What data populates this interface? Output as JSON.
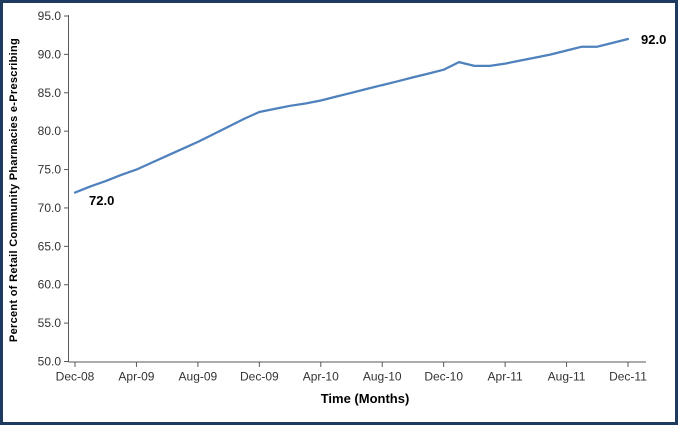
{
  "frame": {
    "border_color": "#1E3A5F",
    "background": "#FFFFFF"
  },
  "chart_data": {
    "type": "line",
    "title": "",
    "xlabel": "Time (Months)",
    "ylabel": "Percent of Retail Community Pharmacies e-Prescribing",
    "ylim": [
      50.0,
      95.0
    ],
    "ytick_step": 5.0,
    "grid": false,
    "legend_position": "none",
    "line_color": "#4F81BD",
    "axis_color": "#595959",
    "y_tick_labels": [
      "95.0",
      "90.0",
      "85.0",
      "80.0",
      "75.0",
      "70.0",
      "65.0",
      "60.0",
      "55.0",
      "50.0"
    ],
    "x_tick_labels": [
      "Dec-08",
      "Apr-09",
      "Aug-09",
      "Dec-09",
      "Apr-10",
      "Aug-10",
      "Dec-10",
      "Apr-11",
      "Aug-11",
      "Dec-11"
    ],
    "x": [
      "Dec-08",
      "Jan-09",
      "Feb-09",
      "Mar-09",
      "Apr-09",
      "May-09",
      "Jun-09",
      "Jul-09",
      "Aug-09",
      "Sep-09",
      "Oct-09",
      "Nov-09",
      "Dec-09",
      "Jan-10",
      "Feb-10",
      "Mar-10",
      "Apr-10",
      "May-10",
      "Jun-10",
      "Jul-10",
      "Aug-10",
      "Sep-10",
      "Oct-10",
      "Nov-10",
      "Dec-10",
      "Jan-11",
      "Feb-11",
      "Mar-11",
      "Apr-11",
      "May-11",
      "Jun-11",
      "Jul-11",
      "Aug-11",
      "Sep-11",
      "Oct-11",
      "Nov-11",
      "Dec-11"
    ],
    "series": [
      {
        "name": "Percent of Retail Community Pharmacies e-Prescribing",
        "values": [
          72.0,
          72.8,
          73.5,
          74.3,
          75.0,
          75.9,
          76.8,
          77.7,
          78.6,
          79.6,
          80.6,
          81.6,
          82.5,
          82.9,
          83.3,
          83.6,
          84.0,
          84.5,
          85.0,
          85.5,
          86.0,
          86.5,
          87.0,
          87.5,
          88.0,
          89.0,
          88.5,
          88.5,
          88.8,
          89.2,
          89.6,
          90.0,
          90.5,
          91.0,
          91.0,
          91.5,
          92.0
        ]
      }
    ],
    "point_labels": {
      "first": "72.0",
      "last": "92.0"
    }
  }
}
